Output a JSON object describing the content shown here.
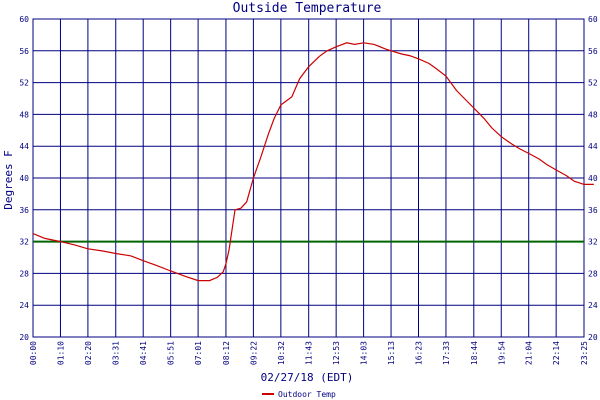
{
  "chart_data": {
    "type": "line",
    "title": "Outside Temperature",
    "ylabel": "Degrees F",
    "xlabel": "02/27/18 (EDT)",
    "ylim": [
      20,
      60
    ],
    "yticks": [
      20,
      24,
      28,
      32,
      36,
      40,
      44,
      48,
      52,
      56,
      60
    ],
    "xticks": [
      "00:00",
      "01:10",
      "02:20",
      "03:31",
      "04:41",
      "05:51",
      "07:01",
      "08:12",
      "09:22",
      "10:32",
      "11:43",
      "12:53",
      "14:03",
      "15:13",
      "16:23",
      "17:33",
      "18:44",
      "19:54",
      "21:04",
      "22:14",
      "23:25"
    ],
    "grid": true,
    "legend_position": "bottom-center",
    "reference_line": {
      "value": 32,
      "color": "#006400"
    },
    "series": [
      {
        "name": "Outdoor Temp",
        "color": "#cc0000",
        "x": [
          "00:00",
          "00:30",
          "01:10",
          "01:45",
          "02:20",
          "03:00",
          "03:31",
          "04:10",
          "04:41",
          "05:15",
          "05:51",
          "06:30",
          "07:01",
          "07:30",
          "07:50",
          "08:05",
          "08:12",
          "08:20",
          "08:35",
          "08:50",
          "09:05",
          "09:22",
          "09:40",
          "10:00",
          "10:15",
          "10:32",
          "11:00",
          "11:20",
          "11:43",
          "12:10",
          "12:30",
          "12:53",
          "13:20",
          "13:40",
          "14:03",
          "14:30",
          "15:00",
          "15:13",
          "15:40",
          "16:00",
          "16:23",
          "16:50",
          "17:10",
          "17:33",
          "18:00",
          "18:20",
          "18:44",
          "19:10",
          "19:30",
          "19:54",
          "20:20",
          "20:40",
          "21:04",
          "21:30",
          "21:50",
          "22:14",
          "22:40",
          "23:00",
          "23:25",
          "23:50"
        ],
        "values": [
          33,
          32.4,
          32,
          31.6,
          31.1,
          30.8,
          30.5,
          30.2,
          29.6,
          29,
          28.3,
          27.6,
          27.1,
          27.1,
          27.5,
          28.2,
          29.2,
          31,
          36,
          36.2,
          37,
          40,
          42.5,
          45.5,
          47.5,
          49.2,
          50.2,
          52.5,
          54,
          55.3,
          56,
          56.5,
          57,
          56.8,
          57,
          56.8,
          56.2,
          56,
          55.6,
          55.4,
          55,
          54.4,
          53.7,
          52.8,
          51,
          50,
          48.8,
          47.5,
          46.3,
          45.2,
          44.3,
          43.7,
          43.1,
          42.4,
          41.7,
          41,
          40.3,
          39.6,
          39.2,
          39.2
        ]
      }
    ]
  }
}
